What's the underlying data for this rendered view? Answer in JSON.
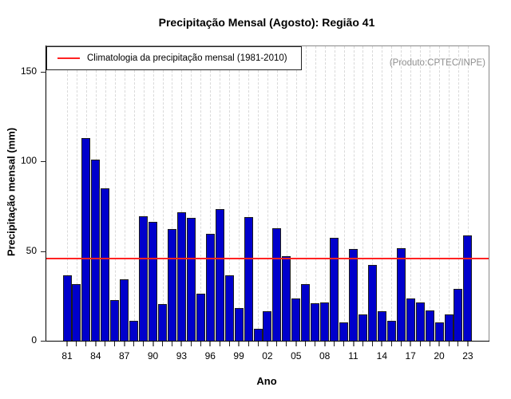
{
  "title": "Precipitação Mensal (Agosto): Região 41",
  "watermark": "(Produto:CPTEC/INPE)",
  "legend": {
    "label": "Climatologia da precipitação mensal (1981-2010)"
  },
  "axes": {
    "xlabel": "Ano",
    "ylabel": "Precipitação mensal (mm)"
  },
  "chart_data": {
    "type": "bar",
    "title": "Precipitação Mensal (Agosto): Região 41",
    "xlabel": "Ano",
    "ylabel": "Precipitação mensal (mm)",
    "ylim": [
      0,
      164
    ],
    "yticks": [
      0,
      50,
      100,
      150
    ],
    "grid": "vertical-dashed",
    "legend_position": "top-left",
    "legend_label": "Climatologia da precipitação mensal (1981-2010)",
    "annotation": "(Produto:CPTEC/INPE)",
    "climatology_value_mm": 45.7,
    "bar_color": "#0000CC",
    "line_color": "#FF2222",
    "years": [
      1981,
      1982,
      1983,
      1984,
      1985,
      1986,
      1987,
      1988,
      1989,
      1990,
      1991,
      1992,
      1993,
      1994,
      1995,
      1996,
      1997,
      1998,
      1999,
      2000,
      2001,
      2002,
      2003,
      2004,
      2005,
      2006,
      2007,
      2008,
      2009,
      2010,
      2011,
      2012,
      2013,
      2014,
      2015,
      2016,
      2017,
      2018,
      2019,
      2020,
      2021,
      2022,
      2023
    ],
    "values": [
      36.5,
      31.5,
      113,
      101,
      85,
      22.5,
      34,
      11,
      69.5,
      66,
      20.5,
      62,
      71.5,
      68.5,
      26,
      59.5,
      73.5,
      36.5,
      18,
      69,
      6.5,
      16.5,
      62.5,
      47,
      23.5,
      31.5,
      21,
      21.5,
      57.5,
      10,
      51,
      14.5,
      42,
      16.5,
      11,
      51.5,
      23.5,
      21.5,
      17,
      10,
      14.5,
      29,
      58.5
    ],
    "x_tick_labels": [
      "81",
      "84",
      "87",
      "90",
      "93",
      "96",
      "99",
      "02",
      "05",
      "08",
      "11",
      "14",
      "17",
      "20",
      "23"
    ],
    "x_tick_label_step": 3
  }
}
